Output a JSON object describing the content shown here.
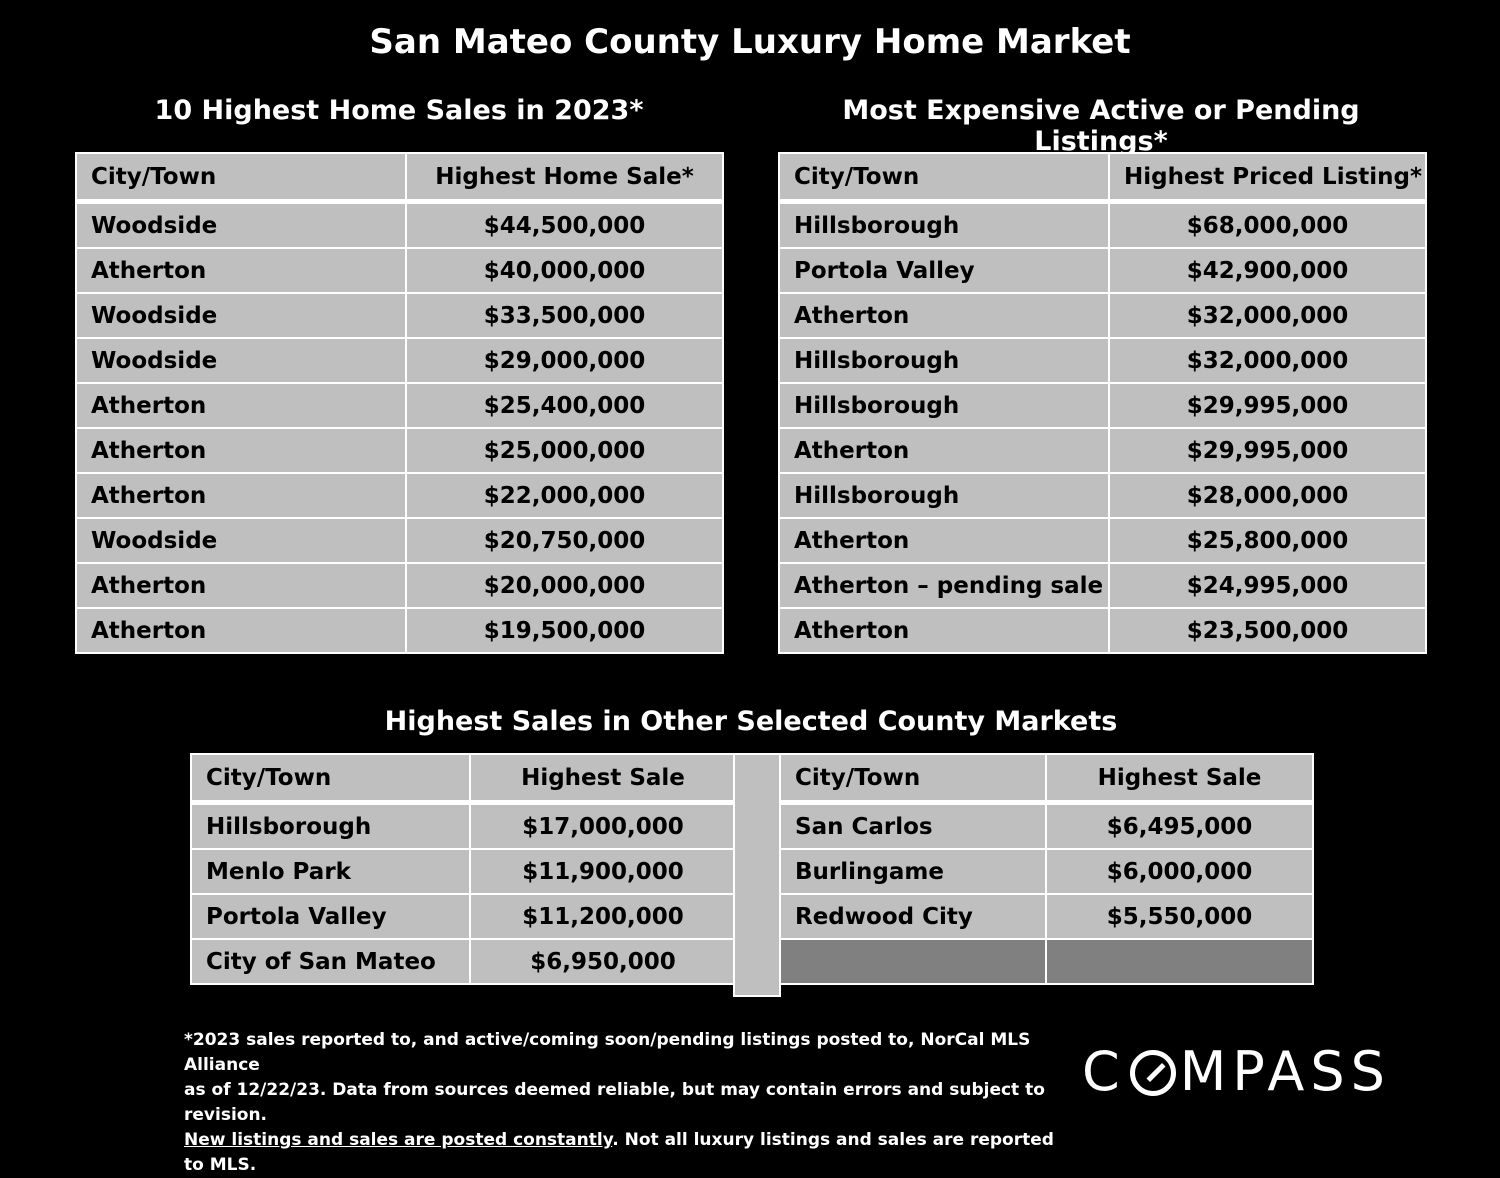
{
  "title": "San Mateo County Luxury Home Market",
  "sales_2023": {
    "subtitle": "10 Highest Home Sales in 2023*",
    "headers": [
      "City/Town",
      "Highest Home Sale*"
    ],
    "rows": [
      [
        "Woodside",
        "$44,500,000"
      ],
      [
        "Atherton",
        "$40,000,000"
      ],
      [
        "Woodside",
        "$33,500,000"
      ],
      [
        "Woodside",
        "$29,000,000"
      ],
      [
        "Atherton",
        "$25,400,000"
      ],
      [
        "Atherton",
        "$25,000,000"
      ],
      [
        "Atherton",
        "$22,000,000"
      ],
      [
        "Woodside",
        "$20,750,000"
      ],
      [
        "Atherton",
        "$20,000,000"
      ],
      [
        "Atherton",
        "$19,500,000"
      ]
    ]
  },
  "listings": {
    "subtitle": "Most Expensive Active or Pending Listings*",
    "headers": [
      "City/Town",
      "Highest Priced Listing*"
    ],
    "rows": [
      [
        "Hillsborough",
        "$68,000,000"
      ],
      [
        "Portola Valley",
        "$42,900,000"
      ],
      [
        "Atherton",
        "$32,000,000"
      ],
      [
        "Hillsborough",
        "$32,000,000"
      ],
      [
        "Hillsborough",
        "$29,995,000"
      ],
      [
        "Atherton",
        "$29,995,000"
      ],
      [
        "Hillsborough",
        "$28,000,000"
      ],
      [
        "Atherton",
        "$25,800,000"
      ],
      [
        "Atherton – pending sale",
        "$24,995,000"
      ],
      [
        "Atherton",
        "$23,500,000"
      ]
    ]
  },
  "other_markets": {
    "subtitle": "Highest Sales in Other Selected County Markets",
    "left": {
      "headers": [
        "City/Town",
        "Highest Sale"
      ],
      "rows": [
        [
          "Hillsborough",
          "$17,000,000"
        ],
        [
          "Menlo Park",
          "$11,900,000"
        ],
        [
          "Portola Valley",
          "$11,200,000"
        ],
        [
          "City of San Mateo",
          "$6,950,000"
        ]
      ]
    },
    "right": {
      "headers": [
        "City/Town",
        "Highest Sale"
      ],
      "rows": [
        [
          "San Carlos",
          "$6,495,000"
        ],
        [
          "Burlingame",
          "$6,000,000"
        ],
        [
          "Redwood City",
          "$5,550,000"
        ]
      ]
    }
  },
  "footnote": {
    "line1": "*2023 sales reported to, and active/coming soon/pending listings posted to, NorCal MLS Alliance",
    "line2": "as of 12/22/23. Data from sources deemed reliable, but may contain errors and subject to revision.",
    "link": "New listings and sales are posted constantly",
    "line3_rest": ". Not all luxury listings and sales are reported to MLS."
  },
  "logo": {
    "before": "C",
    "after": "MPASS"
  }
}
